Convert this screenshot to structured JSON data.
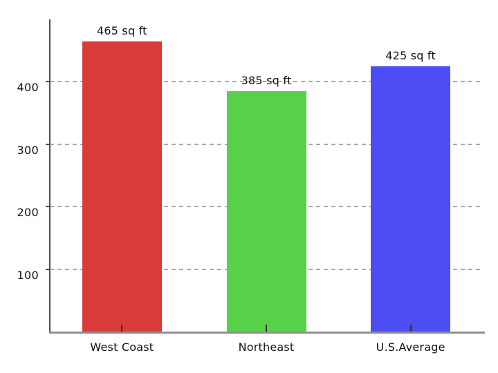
{
  "chart_data": {
    "type": "bar",
    "categories": [
      "West Coast",
      "Northeast",
      "U.S.Average"
    ],
    "values": [
      465,
      385,
      425
    ],
    "value_labels": [
      "465 sq ft",
      "385 sq ft",
      "425 sq ft"
    ],
    "bar_colors": [
      "#d93b3b",
      "#57d147",
      "#4d4df5"
    ],
    "title": "",
    "xlabel": "",
    "ylabel": "",
    "ylim": [
      0,
      500
    ],
    "yticks": [
      100,
      200,
      300,
      400
    ],
    "grid": "horizontal-dashed",
    "legend": "none",
    "axis_colors": {
      "y_axis": "#4d4d4d",
      "x_axis": "#8f8f8f",
      "gridline": "#a9a9a9",
      "tick": "#2e2e2e",
      "text": "#111111"
    }
  }
}
